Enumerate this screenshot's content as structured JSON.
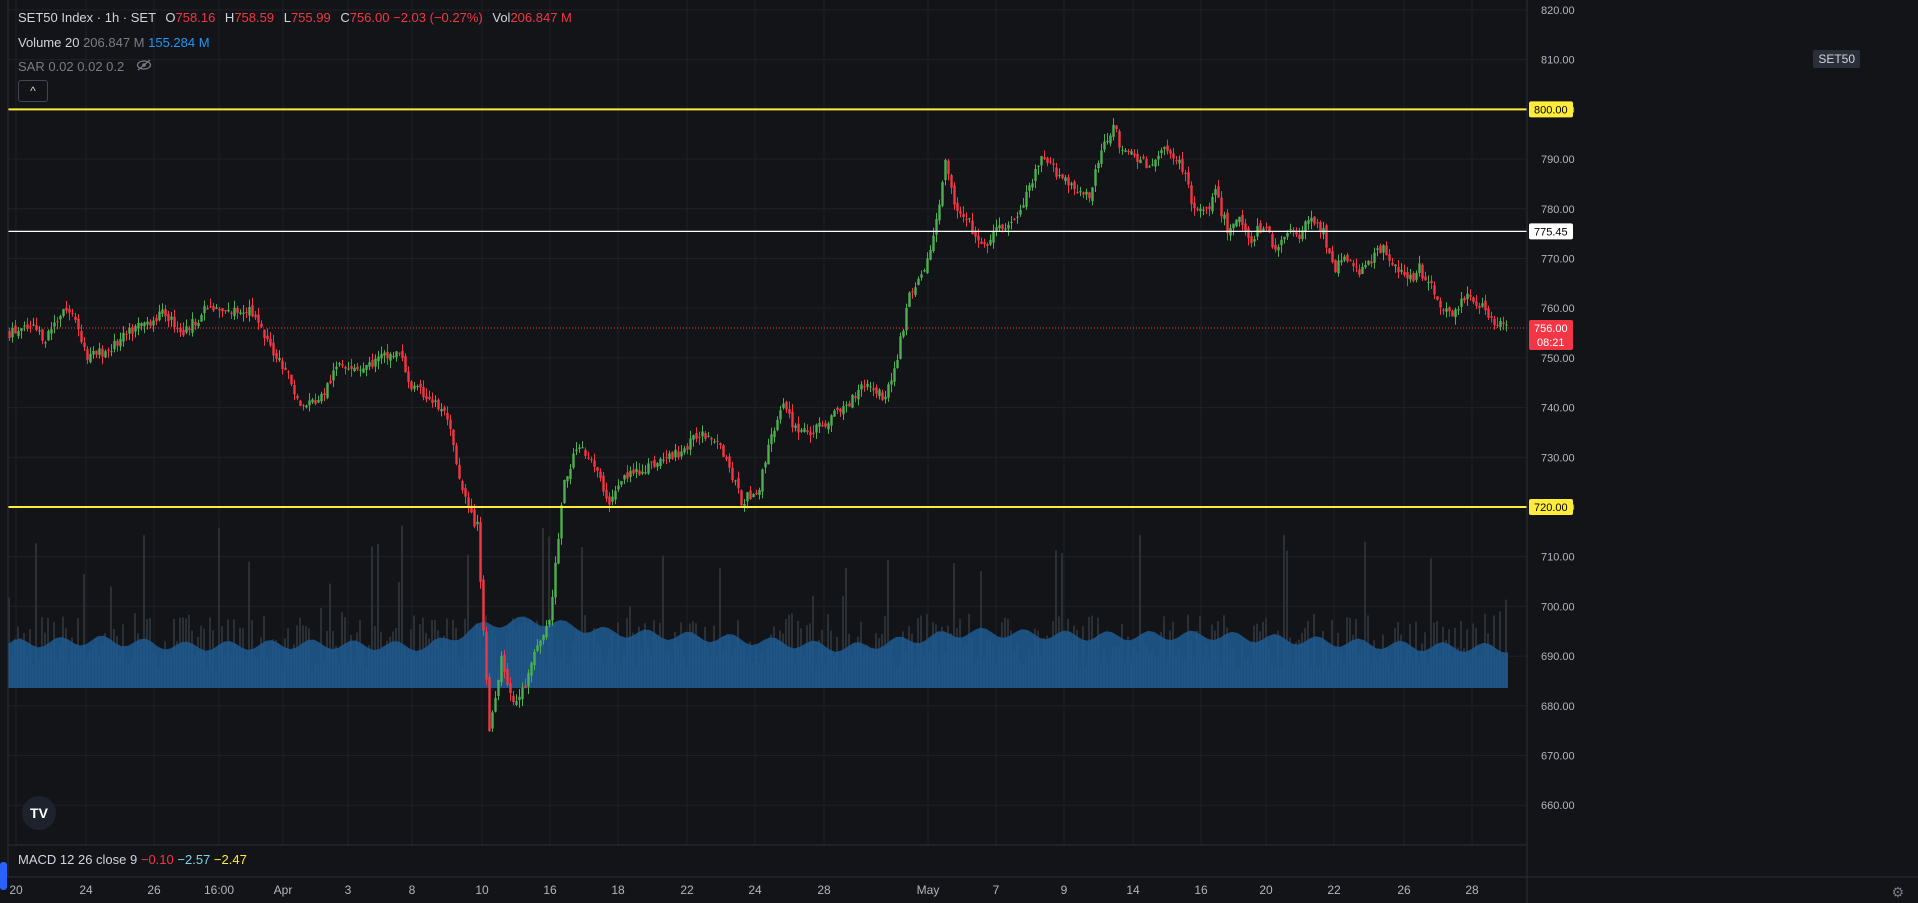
{
  "header": {
    "symbol": "SET50 Index · 1h · SET",
    "open_label": "O",
    "open": "758.16",
    "high_label": "H",
    "high": "758.59",
    "low_label": "L",
    "low": "755.99",
    "close_label": "C",
    "close": "756.00",
    "change": "−2.03 (−0.27%)",
    "vol_label": "Vol",
    "vol": "206.847 M"
  },
  "volume_legend": {
    "name": "Volume 20",
    "v1": "206.847 M",
    "v2": "155.284 M"
  },
  "sar_legend": {
    "name": "SAR 0.02 0.02 0.2"
  },
  "macd_legend": {
    "name": "MACD 12 26 close 9",
    "v1": "−0.10",
    "v2": "−2.57",
    "v3": "−2.47"
  },
  "symbol_tag": "SET50",
  "logo_text": "TV",
  "collapse_glyph": "^",
  "colors": {
    "background": "#131417",
    "grid": "#1e2128",
    "up": "#4caf50",
    "down": "#f23645",
    "volume": "#2b2f36",
    "volume_ma": "#1f5a92",
    "yellow_line": "#ffeb3b",
    "white_line": "#ffffff",
    "last_price": "#f23645"
  },
  "chart_data": {
    "type": "candlestick",
    "ylim": [
      652,
      822
    ],
    "y_ticks": [
      820,
      810,
      800,
      790,
      780,
      770,
      760,
      750,
      740,
      730,
      720,
      710,
      700,
      690,
      680,
      670,
      660
    ],
    "x_tick_labels": [
      "20",
      "24",
      "26",
      "16:00",
      "Apr",
      "3",
      "8",
      "10",
      "16",
      "18",
      "22",
      "24",
      "28",
      "May",
      "7",
      "9",
      "14",
      "16",
      "20",
      "22",
      "26",
      "28"
    ],
    "horizontal_lines": [
      {
        "value": 800.0,
        "label": "800.00",
        "color": "yellow"
      },
      {
        "value": 775.45,
        "label": "775.45",
        "color": "white"
      },
      {
        "value": 720.0,
        "label": "720.00",
        "color": "yellow"
      }
    ],
    "last_price": {
      "value": 756.0,
      "label": "756.00",
      "countdown": "08:21"
    },
    "close_path": [
      [
        0,
        755
      ],
      [
        8,
        756
      ],
      [
        12,
        754
      ],
      [
        18,
        760
      ],
      [
        22,
        758
      ],
      [
        26,
        750
      ],
      [
        34,
        752
      ],
      [
        42,
        756
      ],
      [
        52,
        759
      ],
      [
        58,
        755
      ],
      [
        66,
        760
      ],
      [
        72,
        759
      ],
      [
        80,
        760
      ],
      [
        86,
        753
      ],
      [
        92,
        748
      ],
      [
        97,
        740
      ],
      [
        104,
        742
      ],
      [
        110,
        749
      ],
      [
        118,
        748
      ],
      [
        124,
        750
      ],
      [
        130,
        751
      ],
      [
        134,
        744
      ],
      [
        140,
        742
      ],
      [
        146,
        738
      ],
      [
        150,
        725
      ],
      [
        154,
        718
      ],
      [
        156,
        716
      ],
      [
        160,
        675
      ],
      [
        164,
        690
      ],
      [
        168,
        680
      ],
      [
        172,
        684
      ],
      [
        176,
        692
      ],
      [
        180,
        697
      ],
      [
        185,
        725
      ],
      [
        190,
        733
      ],
      [
        195,
        728
      ],
      [
        200,
        721
      ],
      [
        205,
        726
      ],
      [
        212,
        728
      ],
      [
        220,
        730
      ],
      [
        226,
        732
      ],
      [
        230,
        735
      ],
      [
        236,
        734
      ],
      [
        240,
        728
      ],
      [
        244,
        721
      ],
      [
        250,
        724
      ],
      [
        254,
        735
      ],
      [
        258,
        740
      ],
      [
        262,
        736
      ],
      [
        268,
        735
      ],
      [
        274,
        738
      ],
      [
        280,
        741
      ],
      [
        284,
        745
      ],
      [
        288,
        744
      ],
      [
        292,
        742
      ],
      [
        296,
        750
      ],
      [
        300,
        763
      ],
      [
        304,
        766
      ],
      [
        308,
        774
      ],
      [
        312,
        789
      ],
      [
        316,
        779
      ],
      [
        320,
        777
      ],
      [
        324,
        772
      ],
      [
        330,
        776
      ],
      [
        336,
        778
      ],
      [
        340,
        784
      ],
      [
        344,
        790
      ],
      [
        348,
        788
      ],
      [
        352,
        786
      ],
      [
        356,
        784
      ],
      [
        360,
        782
      ],
      [
        364,
        792
      ],
      [
        368,
        797
      ],
      [
        371,
        791
      ],
      [
        375,
        791
      ],
      [
        380,
        788
      ],
      [
        385,
        792
      ],
      [
        390,
        790
      ],
      [
        394,
        782
      ],
      [
        398,
        779
      ],
      [
        402,
        783
      ],
      [
        406,
        776
      ],
      [
        410,
        778
      ],
      [
        414,
        774
      ],
      [
        418,
        777
      ],
      [
        422,
        772
      ],
      [
        426,
        776
      ],
      [
        430,
        774
      ],
      [
        434,
        779
      ],
      [
        438,
        775
      ],
      [
        442,
        768
      ],
      [
        446,
        770
      ],
      [
        450,
        767
      ],
      [
        454,
        770
      ],
      [
        458,
        772
      ],
      [
        462,
        769
      ],
      [
        466,
        765
      ],
      [
        470,
        768
      ],
      [
        474,
        764
      ],
      [
        478,
        760
      ],
      [
        482,
        759
      ],
      [
        486,
        763
      ],
      [
        490,
        761
      ],
      [
        494,
        758
      ],
      [
        498,
        756
      ]
    ],
    "n_candles": 500,
    "volume_ma_path": [
      [
        0,
        0.55
      ],
      [
        30,
        0.6
      ],
      [
        60,
        0.52
      ],
      [
        100,
        0.55
      ],
      [
        140,
        0.52
      ],
      [
        160,
        0.8
      ],
      [
        175,
        0.85
      ],
      [
        200,
        0.7
      ],
      [
        240,
        0.62
      ],
      [
        280,
        0.5
      ],
      [
        320,
        0.7
      ],
      [
        360,
        0.65
      ],
      [
        400,
        0.66
      ],
      [
        440,
        0.58
      ],
      [
        470,
        0.52
      ],
      [
        500,
        0.5
      ]
    ]
  }
}
